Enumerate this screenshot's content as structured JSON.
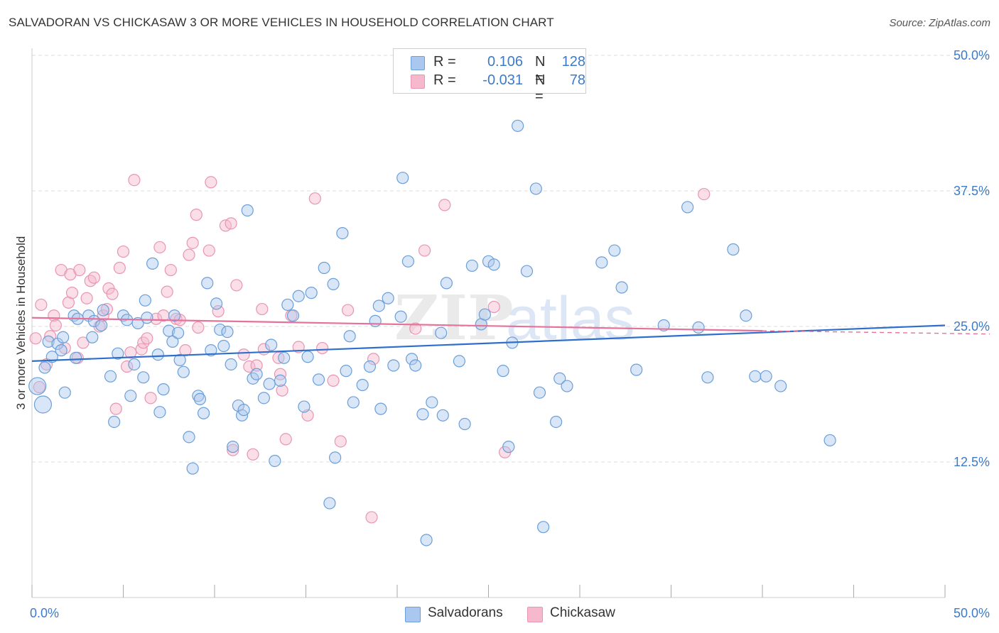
{
  "header": {
    "title": "SALVADORAN VS CHICKASAW 3 OR MORE VEHICLES IN HOUSEHOLD CORRELATION CHART",
    "source": "Source: ZipAtlas.com"
  },
  "legend": {
    "rows": [
      {
        "r_label": "R =",
        "r_value": "0.106",
        "n_label": "N =",
        "n_value": "128"
      },
      {
        "r_label": "R =",
        "r_value": "-0.031",
        "n_label": "N =",
        "n_value": "78"
      }
    ]
  },
  "bottom_legend": {
    "items": [
      "Salvadorans",
      "Chickasaw"
    ]
  },
  "colors": {
    "blue_fill": "#aac8ef",
    "blue_stroke": "#6a9fd8",
    "blue_line": "#2f6fcc",
    "pink_fill": "#f5b8cc",
    "pink_stroke": "#e895b3",
    "pink_line": "#e5729b",
    "tick_label": "#3d7bc8",
    "grid": "#dddddd"
  },
  "chart_data": {
    "type": "scatter",
    "title": "SALVADORAN VS CHICKASAW 3 OR MORE VEHICLES IN HOUSEHOLD CORRELATION CHART",
    "xlabel": "",
    "ylabel": "3 or more Vehicles in Household",
    "xlim": [
      0,
      50
    ],
    "ylim": [
      0,
      50
    ],
    "x_tick_labels": [
      "0.0%",
      "50.0%"
    ],
    "y_ticks": [
      12.5,
      25.0,
      37.5,
      50.0
    ],
    "y_tick_labels": [
      "12.5%",
      "25.0%",
      "37.5%",
      "50.0%"
    ],
    "grid": "horizontal dashed",
    "legend_position": "top-center",
    "series": [
      {
        "name": "Salvadorans",
        "R": 0.106,
        "N": 128,
        "trend": {
          "x": [
            0,
            50
          ],
          "y": [
            21.8,
            25.1
          ]
        },
        "points": [
          [
            0.3,
            19.5
          ],
          [
            0.6,
            17.8
          ],
          [
            0.7,
            21.2
          ],
          [
            0.9,
            23.6
          ],
          [
            1.1,
            22.2
          ],
          [
            1.4,
            23.4
          ],
          [
            1.6,
            22.8
          ],
          [
            1.7,
            24.0
          ],
          [
            1.8,
            18.9
          ],
          [
            2.4,
            22.1
          ],
          [
            2.3,
            26.0
          ],
          [
            2.5,
            25.7
          ],
          [
            3.1,
            26.0
          ],
          [
            3.4,
            25.5
          ],
          [
            3.3,
            24.0
          ],
          [
            3.9,
            26.5
          ],
          [
            3.8,
            25.1
          ],
          [
            4.3,
            20.4
          ],
          [
            4.5,
            16.2
          ],
          [
            4.7,
            22.5
          ],
          [
            5.0,
            26.0
          ],
          [
            5.2,
            25.6
          ],
          [
            5.4,
            18.6
          ],
          [
            5.6,
            21.5
          ],
          [
            5.8,
            25.3
          ],
          [
            6.1,
            20.3
          ],
          [
            6.2,
            27.4
          ],
          [
            6.3,
            25.8
          ],
          [
            6.6,
            30.8
          ],
          [
            6.9,
            22.4
          ],
          [
            7.0,
            17.1
          ],
          [
            7.2,
            19.2
          ],
          [
            7.5,
            24.6
          ],
          [
            7.7,
            23.6
          ],
          [
            7.8,
            26.0
          ],
          [
            8.0,
            24.4
          ],
          [
            8.1,
            21.9
          ],
          [
            8.3,
            20.8
          ],
          [
            8.6,
            14.8
          ],
          [
            8.8,
            11.9
          ],
          [
            9.1,
            18.6
          ],
          [
            9.2,
            18.3
          ],
          [
            9.4,
            17.0
          ],
          [
            9.6,
            29.0
          ],
          [
            9.8,
            22.8
          ],
          [
            10.1,
            27.1
          ],
          [
            10.3,
            24.7
          ],
          [
            10.5,
            23.2
          ],
          [
            10.7,
            24.5
          ],
          [
            10.9,
            21.5
          ],
          [
            11.0,
            13.9
          ],
          [
            11.3,
            17.7
          ],
          [
            11.5,
            16.8
          ],
          [
            11.6,
            17.3
          ],
          [
            11.8,
            35.7
          ],
          [
            12.1,
            20.2
          ],
          [
            12.3,
            20.6
          ],
          [
            12.7,
            18.4
          ],
          [
            13.0,
            19.7
          ],
          [
            13.1,
            23.3
          ],
          [
            13.3,
            12.6
          ],
          [
            13.6,
            20.0
          ],
          [
            13.8,
            22.1
          ],
          [
            14.0,
            27.0
          ],
          [
            14.3,
            26.0
          ],
          [
            14.6,
            27.8
          ],
          [
            14.9,
            17.6
          ],
          [
            15.1,
            22.2
          ],
          [
            15.3,
            28.1
          ],
          [
            15.7,
            20.1
          ],
          [
            16.0,
            30.4
          ],
          [
            16.3,
            8.7
          ],
          [
            16.5,
            28.9
          ],
          [
            16.6,
            12.9
          ],
          [
            17.0,
            33.6
          ],
          [
            17.2,
            20.9
          ],
          [
            17.4,
            24.1
          ],
          [
            17.6,
            18.0
          ],
          [
            18.1,
            19.6
          ],
          [
            18.5,
            21.3
          ],
          [
            18.8,
            25.5
          ],
          [
            19.0,
            26.9
          ],
          [
            19.1,
            17.4
          ],
          [
            19.5,
            27.6
          ],
          [
            19.8,
            21.4
          ],
          [
            20.2,
            25.9
          ],
          [
            20.3,
            38.7
          ],
          [
            20.6,
            31.0
          ],
          [
            20.8,
            22.0
          ],
          [
            21.0,
            21.4
          ],
          [
            21.4,
            16.9
          ],
          [
            21.6,
            5.3
          ],
          [
            21.9,
            18.0
          ],
          [
            22.4,
            24.4
          ],
          [
            22.5,
            16.8
          ],
          [
            22.7,
            29.0
          ],
          [
            23.4,
            21.8
          ],
          [
            23.7,
            16.0
          ],
          [
            24.1,
            30.6
          ],
          [
            24.6,
            25.2
          ],
          [
            24.8,
            26.1
          ],
          [
            25.0,
            31.0
          ],
          [
            25.3,
            30.7
          ],
          [
            25.8,
            20.9
          ],
          [
            26.1,
            13.9
          ],
          [
            26.3,
            23.5
          ],
          [
            26.6,
            43.5
          ],
          [
            27.1,
            30.1
          ],
          [
            27.6,
            37.7
          ],
          [
            27.8,
            18.9
          ],
          [
            28.0,
            6.5
          ],
          [
            28.7,
            16.2
          ],
          [
            28.9,
            20.2
          ],
          [
            29.3,
            19.5
          ],
          [
            31.2,
            30.9
          ],
          [
            31.9,
            32.0
          ],
          [
            32.3,
            28.6
          ],
          [
            33.1,
            21.0
          ],
          [
            34.6,
            25.1
          ],
          [
            35.9,
            36.0
          ],
          [
            36.5,
            24.9
          ],
          [
            37.0,
            20.3
          ],
          [
            38.4,
            32.1
          ],
          [
            39.1,
            26.0
          ],
          [
            39.6,
            20.4
          ],
          [
            40.2,
            20.4
          ],
          [
            41.0,
            19.5
          ],
          [
            43.7,
            14.5
          ]
        ]
      },
      {
        "name": "Chickasaw",
        "R": -0.031,
        "N": 78,
        "trend": {
          "x": [
            0,
            40
          ],
          "y": [
            25.8,
            24.6
          ]
        },
        "points": [
          [
            0.2,
            23.9
          ],
          [
            0.4,
            19.4
          ],
          [
            0.5,
            27.0
          ],
          [
            0.8,
            21.5
          ],
          [
            1.0,
            24.1
          ],
          [
            1.2,
            26.0
          ],
          [
            1.3,
            25.1
          ],
          [
            1.6,
            30.2
          ],
          [
            1.8,
            23.0
          ],
          [
            2.0,
            27.2
          ],
          [
            2.1,
            29.8
          ],
          [
            2.2,
            28.1
          ],
          [
            2.5,
            22.1
          ],
          [
            2.6,
            30.2
          ],
          [
            2.8,
            23.5
          ],
          [
            3.0,
            27.6
          ],
          [
            3.2,
            29.2
          ],
          [
            3.4,
            29.5
          ],
          [
            3.7,
            25.0
          ],
          [
            3.9,
            26.0
          ],
          [
            4.1,
            26.6
          ],
          [
            4.2,
            28.5
          ],
          [
            4.4,
            28.0
          ],
          [
            4.6,
            17.4
          ],
          [
            4.8,
            30.4
          ],
          [
            5.0,
            31.9
          ],
          [
            5.2,
            21.3
          ],
          [
            5.4,
            22.6
          ],
          [
            5.6,
            38.5
          ],
          [
            6.0,
            22.9
          ],
          [
            6.1,
            23.5
          ],
          [
            6.3,
            23.9
          ],
          [
            6.5,
            18.4
          ],
          [
            6.8,
            25.7
          ],
          [
            7.0,
            32.3
          ],
          [
            7.2,
            26.0
          ],
          [
            7.4,
            28.2
          ],
          [
            7.6,
            30.2
          ],
          [
            7.9,
            25.7
          ],
          [
            8.1,
            25.6
          ],
          [
            8.4,
            22.8
          ],
          [
            8.6,
            31.6
          ],
          [
            8.8,
            32.7
          ],
          [
            9.0,
            35.3
          ],
          [
            9.1,
            24.9
          ],
          [
            9.7,
            32.0
          ],
          [
            9.8,
            38.3
          ],
          [
            10.2,
            26.4
          ],
          [
            10.6,
            34.3
          ],
          [
            10.9,
            34.5
          ],
          [
            11.0,
            13.6
          ],
          [
            11.2,
            28.8
          ],
          [
            11.6,
            22.4
          ],
          [
            11.9,
            21.3
          ],
          [
            12.1,
            13.2
          ],
          [
            12.3,
            21.4
          ],
          [
            12.6,
            26.6
          ],
          [
            12.7,
            22.9
          ],
          [
            13.5,
            22.1
          ],
          [
            13.6,
            20.6
          ],
          [
            13.7,
            19.1
          ],
          [
            13.9,
            14.6
          ],
          [
            14.2,
            26.0
          ],
          [
            14.6,
            23.1
          ],
          [
            15.1,
            16.8
          ],
          [
            15.5,
            36.8
          ],
          [
            15.9,
            23.0
          ],
          [
            16.5,
            20.0
          ],
          [
            16.9,
            14.4
          ],
          [
            17.3,
            26.5
          ],
          [
            18.6,
            7.4
          ],
          [
            18.7,
            22.0
          ],
          [
            21.0,
            24.8
          ],
          [
            21.5,
            32.0
          ],
          [
            22.6,
            36.2
          ],
          [
            25.3,
            26.8
          ],
          [
            25.9,
            13.4
          ],
          [
            36.8,
            37.2
          ]
        ]
      }
    ]
  }
}
